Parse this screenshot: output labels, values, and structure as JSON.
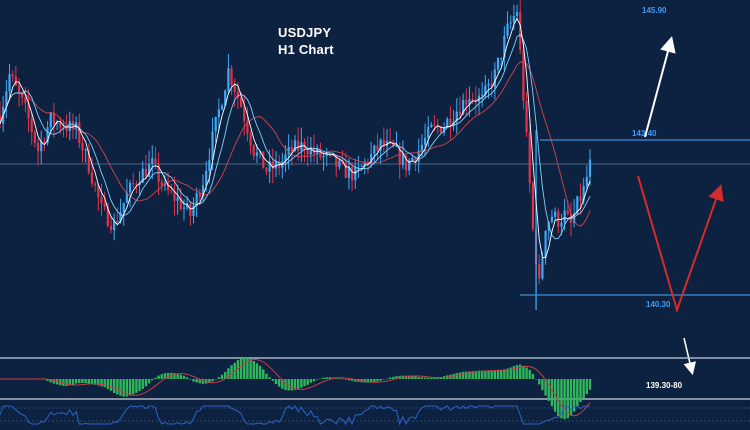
{
  "chart_data": {
    "type": "candlestick",
    "title": "USDJPY",
    "subtitle": "H1 Chart",
    "colors": {
      "background": "#0d2240",
      "bull": "#3fa9f5",
      "bear": "#e0344a",
      "level_line": "#3f8fd8",
      "level_label": "#3f9cf5",
      "ma_fast": "#ffffff",
      "ma_mid": "#7fd0ff",
      "ma_slow": "#d0454f",
      "histogram": "#2fb85a",
      "histogram_signal": "#c73c46",
      "oscillator": "#2b63c8",
      "scenario_down_up": "#d72b2b",
      "scenario_up": "#ffffff"
    },
    "ylim": [
      139.3,
      146.2
    ],
    "levels": [
      {
        "name": "resistance",
        "price": 145.9,
        "label": "145.90"
      },
      {
        "name": "level",
        "price": 143.4,
        "label": "143.40"
      },
      {
        "name": "support",
        "price": 140.3,
        "label": "140.30"
      }
    ],
    "current_price": 142.92,
    "extra_label": "139.30-80",
    "price_path": [
      [
        0,
        143.9
      ],
      [
        3,
        144.7
      ],
      [
        8,
        144.0
      ],
      [
        12,
        143.2
      ],
      [
        16,
        143.8
      ],
      [
        20,
        143.7
      ],
      [
        24,
        143.6
      ],
      [
        28,
        142.9
      ],
      [
        32,
        142.0
      ],
      [
        36,
        141.7
      ],
      [
        40,
        142.3
      ],
      [
        44,
        142.7
      ],
      [
        48,
        142.9
      ],
      [
        52,
        142.4
      ],
      [
        56,
        142.2
      ],
      [
        60,
        141.9
      ],
      [
        64,
        142.6
      ],
      [
        68,
        143.7
      ],
      [
        72,
        144.8
      ],
      [
        76,
        144.1
      ],
      [
        80,
        143.2
      ],
      [
        84,
        142.8
      ],
      [
        88,
        142.9
      ],
      [
        92,
        143.2
      ],
      [
        96,
        143.3
      ],
      [
        100,
        143.1
      ],
      [
        104,
        143.0
      ],
      [
        108,
        142.8
      ],
      [
        112,
        142.7
      ],
      [
        116,
        143.0
      ],
      [
        120,
        143.3
      ],
      [
        124,
        143.2
      ],
      [
        128,
        142.9
      ],
      [
        132,
        143.2
      ],
      [
        136,
        143.6
      ],
      [
        140,
        143.7
      ],
      [
        144,
        144.0
      ],
      [
        148,
        144.3
      ],
      [
        152,
        144.2
      ],
      [
        156,
        144.7
      ],
      [
        160,
        145.6
      ],
      [
        163,
        146.0
      ],
      [
        166,
        143.4
      ],
      [
        168,
        141.6
      ],
      [
        170,
        140.5
      ],
      [
        172,
        141.7
      ],
      [
        174,
        141.9
      ],
      [
        176,
        141.8
      ],
      [
        178,
        141.9
      ],
      [
        180,
        141.7
      ],
      [
        182,
        142.1
      ],
      [
        184,
        142.4
      ],
      [
        186,
        142.9
      ]
    ],
    "path_x_range": [
      0,
      186
    ],
    "panels": [
      "price",
      "histogram",
      "oscillator"
    ]
  }
}
